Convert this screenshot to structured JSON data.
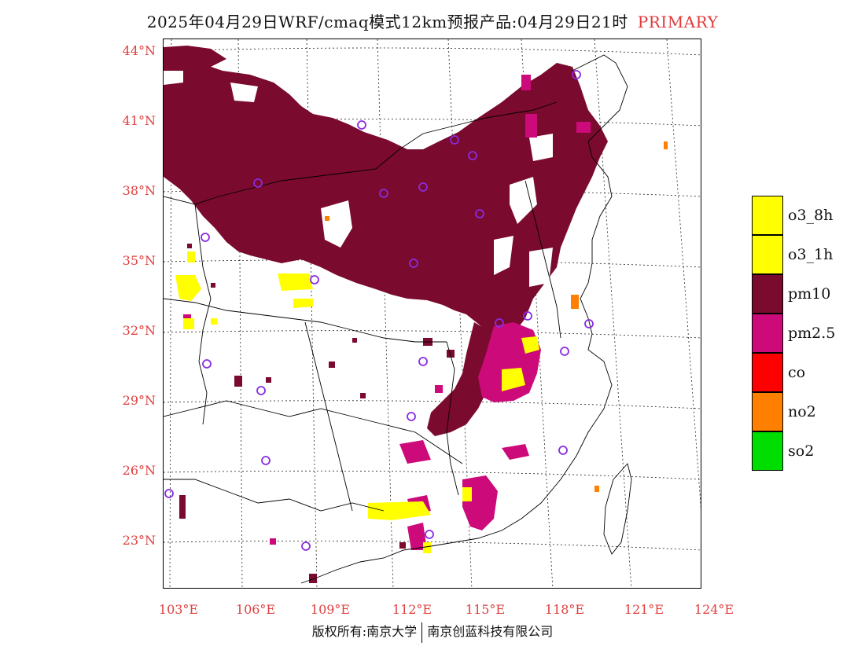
{
  "header": {
    "title": "2025年04月29日WRF/cmaq模式12km预报产品:04月29日21时",
    "tag": "PRIMARY"
  },
  "axes": {
    "lat_labels": [
      "44°N",
      "41°N",
      "38°N",
      "35°N",
      "32°N",
      "29°N",
      "26°N",
      "23°N"
    ],
    "lon_labels": [
      "103°E",
      "106°E",
      "109°E",
      "112°E",
      "115°E",
      "118°E",
      "121°E",
      "124°E"
    ]
  },
  "legend": {
    "items": [
      {
        "label": "o3_8h",
        "color": "#ffff00"
      },
      {
        "label": "o3_1h",
        "color": "#ffff00"
      },
      {
        "label": "pm10",
        "color": "#7a0a2e"
      },
      {
        "label": "pm2.5",
        "color": "#cc0a7a"
      },
      {
        "label": "co",
        "color": "#ff0000"
      },
      {
        "label": "no2",
        "color": "#ff7f00"
      },
      {
        "label": "so2",
        "color": "#00dd00"
      }
    ]
  },
  "footer": {
    "left": "版权所有:南京大学",
    "right": "南京创蓝科技有限公司"
  },
  "colors": {
    "pm10": "#7a0a2e",
    "pm25": "#cc0a7a",
    "o3": "#ffff00",
    "no2": "#ff7f00",
    "station": "#8a2be2",
    "axis_label": "#e04040"
  }
}
